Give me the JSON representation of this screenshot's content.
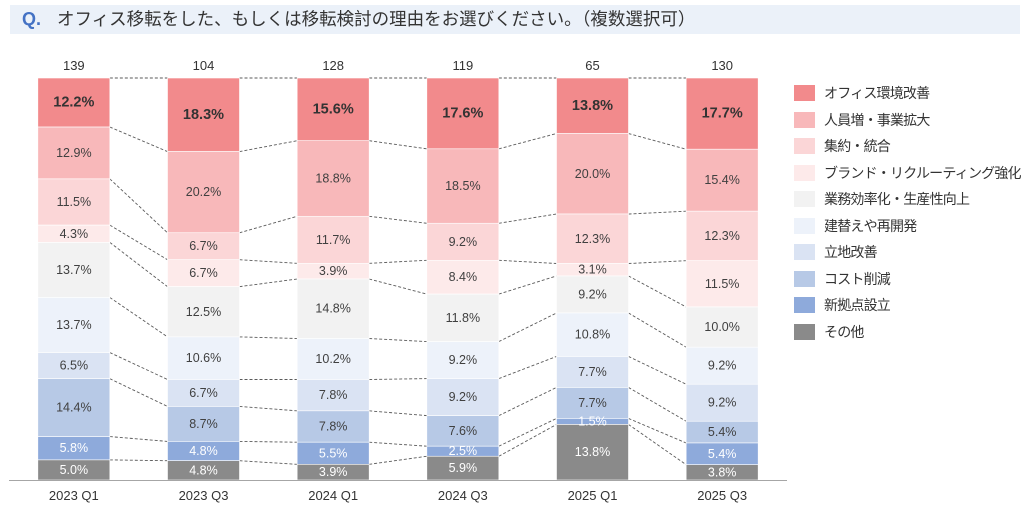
{
  "title": {
    "prefix": "Q.",
    "text": "オフィス移転をした、もしくは移転検討の理由をお選びください。（複数選択可）"
  },
  "chart_data": {
    "type": "bar",
    "stacking": "percent",
    "categories": [
      "2023 Q1",
      "2023 Q3",
      "2024 Q1",
      "2024 Q3",
      "2025 Q1",
      "2025 Q3"
    ],
    "counts": [
      139,
      104,
      128,
      119,
      65,
      130
    ],
    "value_suffix": "%",
    "ylim": [
      0,
      100
    ],
    "grid": false,
    "legend_position": "right",
    "connector_lines": true,
    "series": [
      {
        "name": "オフィス環境改善",
        "color": "#F28A8C",
        "label_color": "#333333",
        "values": [
          12.2,
          18.3,
          15.6,
          17.6,
          13.8,
          17.7
        ]
      },
      {
        "name": "人員増・事業拡大",
        "color": "#F8B8BA",
        "label_color": "#404040",
        "values": [
          12.9,
          20.2,
          18.8,
          18.5,
          20.0,
          15.4
        ]
      },
      {
        "name": "集約・統合",
        "color": "#FBD6D7",
        "label_color": "#404040",
        "values": [
          11.5,
          6.7,
          11.7,
          9.2,
          12.3,
          12.3
        ]
      },
      {
        "name": "ブランド・リクルーティング強化",
        "color": "#FDEAEA",
        "label_color": "#404040",
        "values": [
          4.3,
          6.7,
          3.9,
          8.4,
          3.1,
          11.5
        ]
      },
      {
        "name": "業務効率化・生産性向上",
        "color": "#F2F2F2",
        "label_color": "#404040",
        "values": [
          13.7,
          12.5,
          14.8,
          11.8,
          9.2,
          10.0
        ]
      },
      {
        "name": "建替えや再開発",
        "color": "#EDF2FA",
        "label_color": "#404040",
        "values": [
          13.7,
          10.6,
          10.2,
          9.2,
          10.8,
          9.2
        ]
      },
      {
        "name": "立地改善",
        "color": "#DAE3F3",
        "label_color": "#404040",
        "values": [
          6.5,
          6.7,
          7.8,
          9.2,
          7.7,
          9.2
        ]
      },
      {
        "name": "コスト削減",
        "color": "#B7C9E6",
        "label_color": "#404040",
        "values": [
          14.4,
          8.7,
          7.8,
          7.6,
          7.7,
          5.4
        ]
      },
      {
        "name": "新拠点設立",
        "color": "#8EAADB",
        "label_color": "#FFFFFF",
        "values": [
          5.8,
          4.8,
          5.5,
          2.5,
          1.5,
          5.4
        ]
      },
      {
        "name": "その他",
        "color": "#8A8A8A",
        "label_color": "#FFFFFF",
        "values": [
          5.0,
          4.8,
          3.9,
          5.9,
          13.8,
          3.8
        ]
      }
    ]
  }
}
